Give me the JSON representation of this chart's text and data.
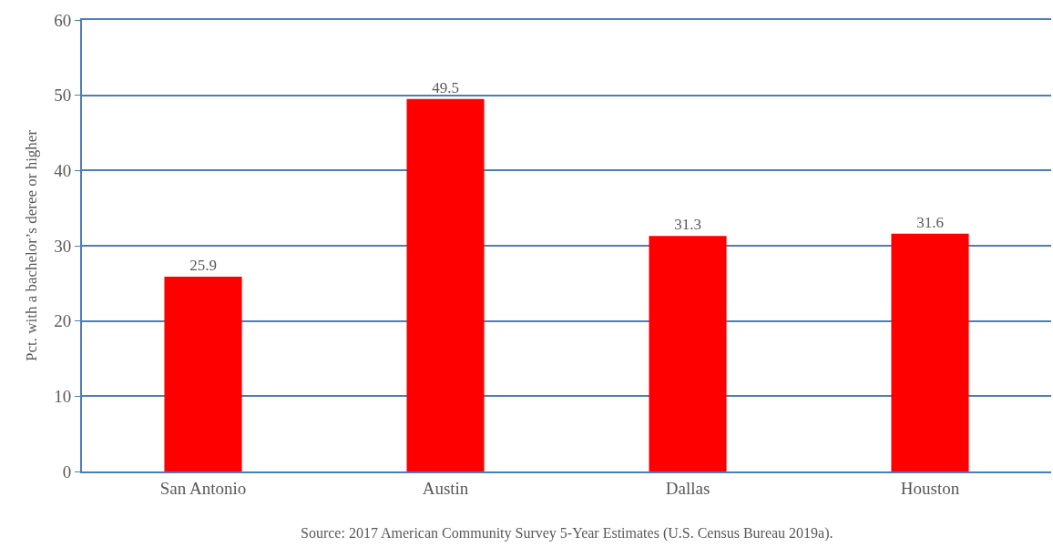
{
  "chart_data": {
    "type": "bar",
    "ylabel": "Pct. with a bachelor’s deree or higher",
    "categories": [
      "San Antonio",
      "Austin",
      "Dallas",
      "Houston"
    ],
    "values": [
      25.9,
      49.5,
      31.3,
      31.6
    ],
    "color": "#ff0000",
    "ylim": [
      0,
      60
    ],
    "yticks": [
      0,
      10,
      20,
      30,
      40,
      50,
      60
    ],
    "grid": "y",
    "data_labels": true,
    "annotations": [
      "Source: 2017 American Community Survey 5-Year Estimates (U.S. Census Bureau 2019a)."
    ]
  }
}
